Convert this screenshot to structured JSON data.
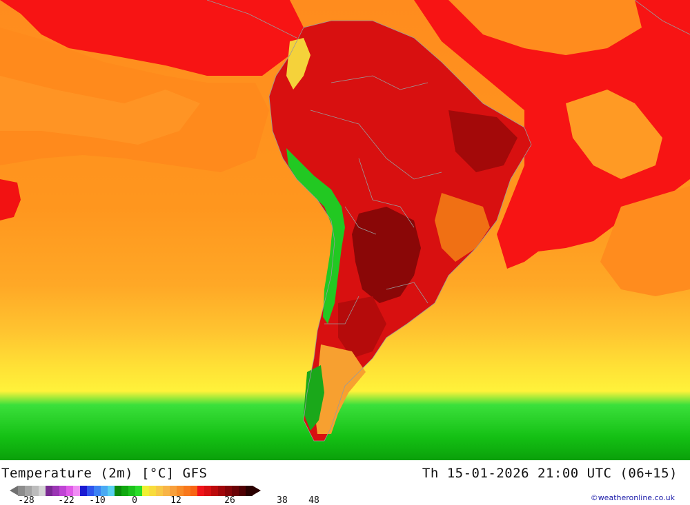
{
  "map": {
    "title": "Temperature (2m) [°C] GFS",
    "valid_time": "Th 15-01-2026 21:00 UTC (06+15)",
    "credit": "©weatheronline.co.uk",
    "legend": {
      "ticks": [
        "-28",
        "-22",
        "-10",
        "0",
        "12",
        "26",
        "38",
        "48"
      ],
      "colors": [
        "#8c8c8c",
        "#a4a4a4",
        "#bcbcbc",
        "#d4d4d4",
        "#7a2a92",
        "#9b36b4",
        "#bf44d4",
        "#e05ae8",
        "#f08cf4",
        "#1a1ad2",
        "#2f55ee",
        "#3c82f4",
        "#49aaf4",
        "#59d0f0",
        "#0a8a0a",
        "#10a810",
        "#1cc21c",
        "#2adc2a",
        "#f0f032",
        "#f8dc3c",
        "#f8c846",
        "#f8b446",
        "#f8a03c",
        "#f88c28",
        "#f8781c",
        "#f86414",
        "#f0141a",
        "#d80f12",
        "#bc0a0c",
        "#a0060a",
        "#840408",
        "#6a0206",
        "#500003",
        "#2a0000"
      ]
    },
    "colors": {
      "ocean_warm": "#ff8c1e",
      "ocean_hot": "#f71414",
      "land_hot": "#d81010",
      "land_very_hot": "#8a0707",
      "mid_yellow": "#ffd232",
      "cold_green": "#1fdc1f",
      "coast_line": "#9a9a9a"
    }
  }
}
